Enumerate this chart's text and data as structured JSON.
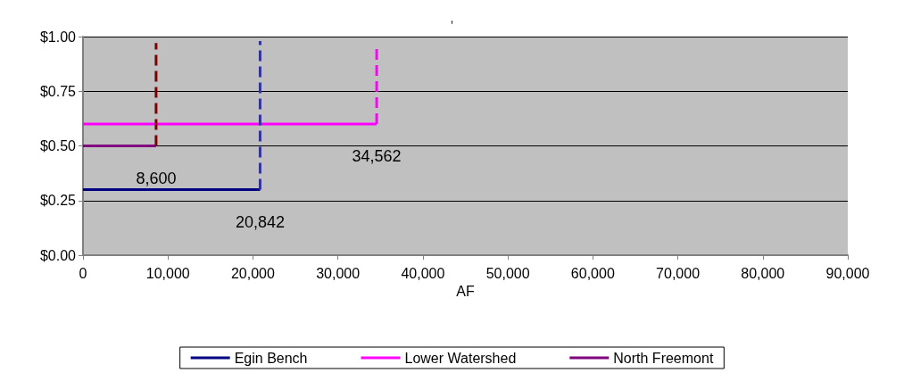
{
  "chart_data": {
    "type": "line",
    "title": ",",
    "xlabel": "AF",
    "series": [
      {
        "name": "Egin Bench",
        "color": "#000080",
        "x": [
          0,
          20842
        ],
        "values": [
          0.3,
          0.3
        ]
      },
      {
        "name": "Lower Watershed",
        "color": "#ff00ff",
        "x": [
          0,
          34562
        ],
        "values": [
          0.6,
          0.6
        ]
      },
      {
        "name": "North Freemont",
        "color": "#800080",
        "x": [
          0,
          8600
        ],
        "values": [
          0.5,
          0.5
        ]
      },
      {
        "color": "#333399",
        "x": [
          20842,
          20842
        ],
        "values": [
          0.3,
          0.98
        ],
        "line_style": "dashed"
      },
      {
        "color": "#ff00ff",
        "x": [
          34562,
          34562
        ],
        "values": [
          0.6,
          0.95
        ],
        "line_style": "dashed"
      },
      {
        "color": "#800000",
        "x": [
          8600,
          8600
        ],
        "values": [
          0.5,
          0.97
        ],
        "line_style": "dashed"
      }
    ],
    "annotations": [
      {
        "text": "8,600",
        "x": 8600,
        "y": 0.5
      },
      {
        "text": "20,842",
        "x": 20842,
        "y": 0.3
      },
      {
        "text": "34,562",
        "x": 34562,
        "y": 0.6
      }
    ],
    "xlim": [
      0,
      90000
    ],
    "xticks": [
      {
        "value": 0,
        "label": "0"
      },
      {
        "value": 10000,
        "label": "10,000"
      },
      {
        "value": 20000,
        "label": "20,000"
      },
      {
        "value": 30000,
        "label": "30,000"
      },
      {
        "value": 40000,
        "label": "40,000"
      },
      {
        "value": 50000,
        "label": "50,000"
      },
      {
        "value": 60000,
        "label": "60,000"
      },
      {
        "value": 70000,
        "label": "70,000"
      },
      {
        "value": 80000,
        "label": "80,000"
      },
      {
        "value": 90000,
        "label": "90,000"
      }
    ],
    "ylim": [
      0,
      1
    ],
    "yticks": [
      {
        "value": 0,
        "label": "$0.00"
      },
      {
        "value": 0.25,
        "label": "$0.25"
      },
      {
        "value": 0.5,
        "label": "$0.50"
      },
      {
        "value": 0.75,
        "label": "$0.75"
      },
      {
        "value": 1,
        "label": "$1.00"
      }
    ],
    "grid": "y",
    "legend": "bottom",
    "marker": "none",
    "line_style": "solid"
  }
}
